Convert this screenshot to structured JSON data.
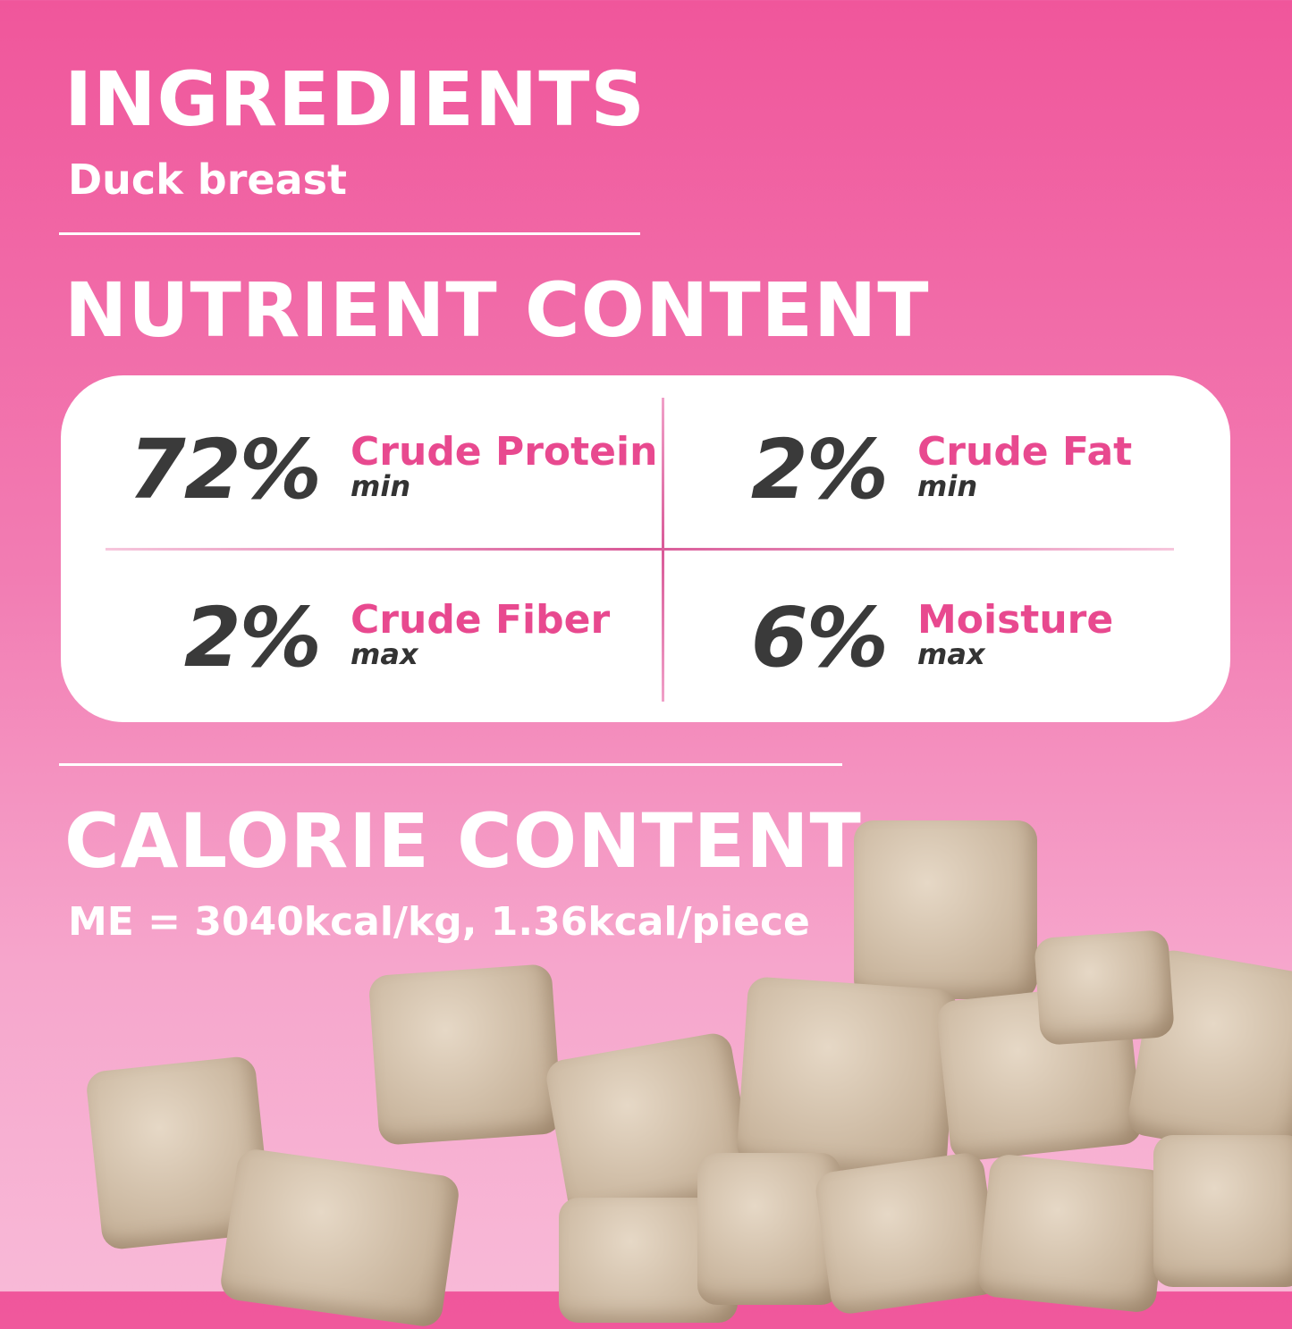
{
  "ingredients": {
    "title": "INGREDIENTS",
    "text": "Duck breast"
  },
  "nutrients": {
    "title": "NUTRIENT CONTENT",
    "items": [
      {
        "value": "72%",
        "name": "Crude Protein",
        "qualifier": "min"
      },
      {
        "value": "2%",
        "name": "Crude Fat",
        "qualifier": "min"
      },
      {
        "value": "2%",
        "name": "Crude Fiber",
        "qualifier": "max"
      },
      {
        "value": "6%",
        "name": "Moisture",
        "qualifier": "max"
      }
    ]
  },
  "calories": {
    "title": "CALORIE CONTENT",
    "text": "ME = 3040kcal/kg, 1.36kcal/piece"
  },
  "colors": {
    "accent": "#e8498f",
    "background_top": "#f0569b",
    "background_bottom": "#f8b9d7",
    "number": "#3a3a3a"
  }
}
